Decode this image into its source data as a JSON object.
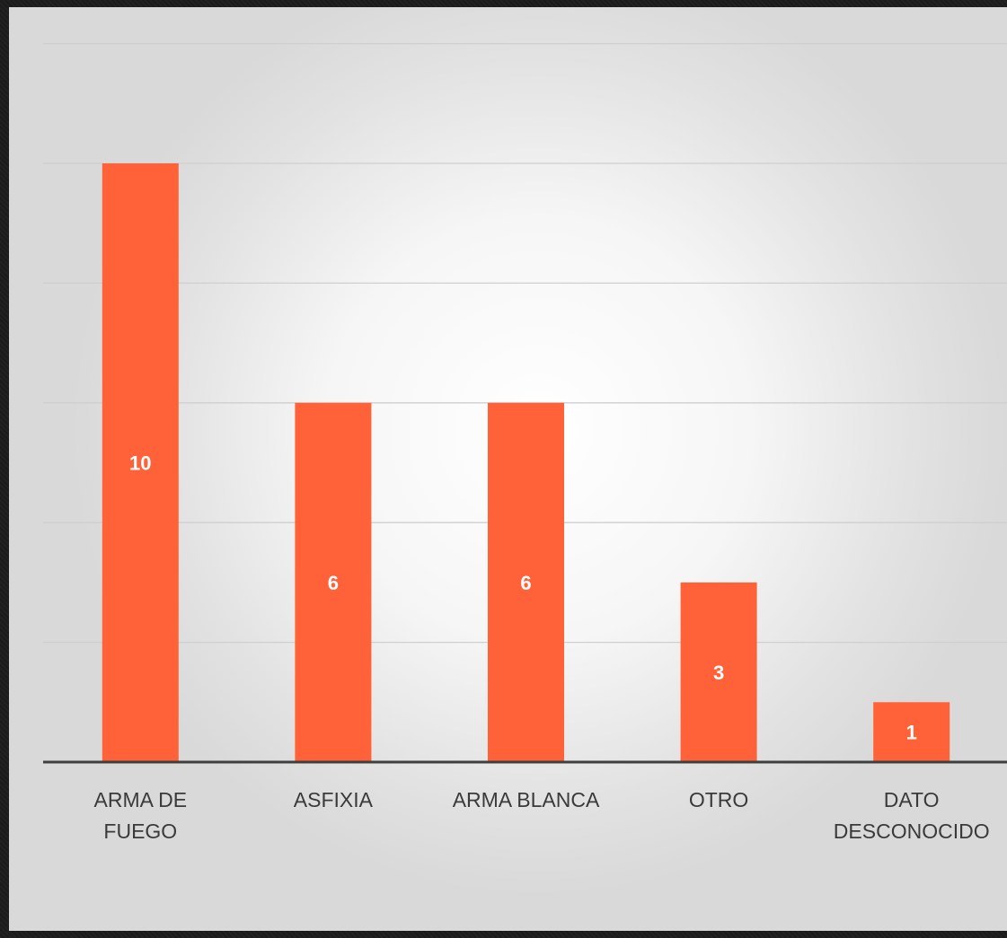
{
  "chart_data": {
    "type": "bar",
    "categories": [
      [
        "ARMA DE",
        "FUEGO"
      ],
      [
        "ASFIXIA"
      ],
      [
        "ARMA BLANCA"
      ],
      [
        "OTRO"
      ],
      [
        "DATO",
        "DESCONOCIDO"
      ]
    ],
    "values": [
      10,
      6,
      6,
      3,
      1
    ],
    "data_labels": [
      "10",
      "6",
      "6",
      "3",
      "1"
    ],
    "ylim": [
      0,
      12
    ],
    "gridlines": true,
    "legend": "none",
    "bar_color": "#ff6138",
    "title": "",
    "xlabel": "",
    "ylabel": ""
  }
}
